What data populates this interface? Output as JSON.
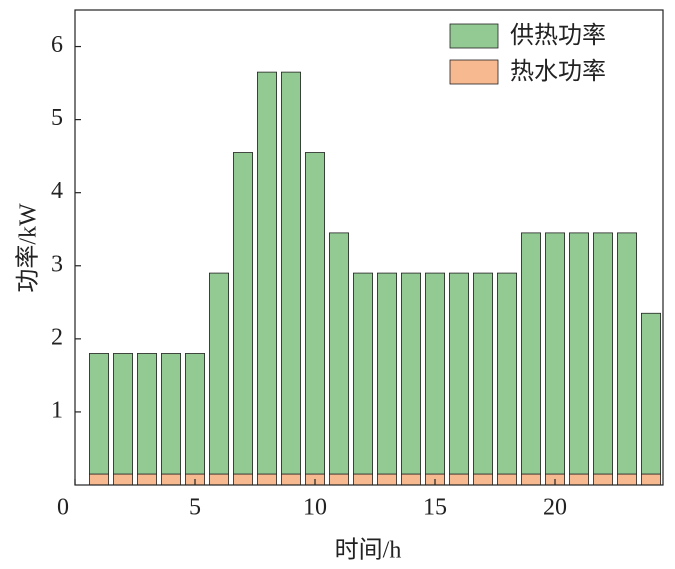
{
  "chart_data": {
    "type": "stacked-bar",
    "xlabel": "时间/h",
    "ylabel": "功率/kW",
    "x": [
      1,
      2,
      3,
      4,
      5,
      6,
      7,
      8,
      9,
      10,
      11,
      12,
      13,
      14,
      15,
      16,
      17,
      18,
      19,
      20,
      21,
      22,
      23,
      24
    ],
    "series": [
      {
        "name": "热水功率",
        "color": "#f7b98f",
        "values": [
          0.15,
          0.15,
          0.15,
          0.15,
          0.15,
          0.15,
          0.15,
          0.15,
          0.15,
          0.15,
          0.15,
          0.15,
          0.15,
          0.15,
          0.15,
          0.15,
          0.15,
          0.15,
          0.15,
          0.15,
          0.15,
          0.15,
          0.15,
          0.15
        ]
      },
      {
        "name": "供热功率",
        "color": "#93c993",
        "values": [
          1.65,
          1.65,
          1.65,
          1.65,
          1.65,
          2.75,
          4.4,
          5.5,
          5.5,
          4.4,
          3.3,
          2.75,
          2.75,
          2.75,
          2.75,
          2.75,
          2.75,
          2.75,
          3.3,
          3.3,
          3.3,
          3.3,
          3.3,
          2.2
        ]
      }
    ],
    "xlim": [
      0,
      24.5
    ],
    "xticks": [
      0,
      5,
      10,
      15,
      20
    ],
    "ylim": [
      0,
      6.5
    ],
    "yticks": [
      1,
      2,
      3,
      4,
      5,
      6
    ],
    "legend": "upper right"
  }
}
